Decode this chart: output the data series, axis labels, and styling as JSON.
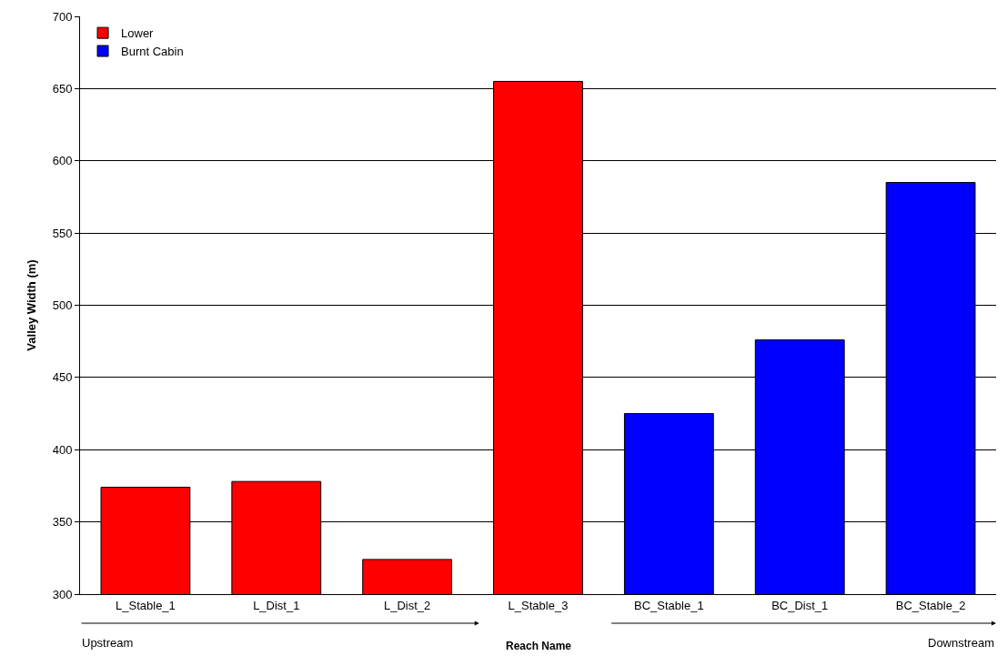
{
  "chart_data": {
    "type": "bar",
    "xlabel": "Reach Name",
    "ylabel": "Valley Width (m)",
    "categories": [
      "L_Stable_1",
      "L_Dist_1",
      "L_Dist_2",
      "L_Stable_3",
      "BC_Stable_1",
      "BC_Dist_1",
      "BC_Stable_2"
    ],
    "series": [
      {
        "name": "Lower",
        "color": "#ff0000",
        "values": [
          374,
          378,
          324,
          655,
          null,
          null,
          null
        ]
      },
      {
        "name": "Burnt Cabin",
        "color": "#0000ff",
        "values": [
          null,
          null,
          null,
          null,
          425,
          476,
          585
        ]
      }
    ],
    "ylim": [
      300,
      700
    ],
    "yticks": [
      300,
      350,
      400,
      450,
      500,
      550,
      600,
      650,
      700
    ],
    "grid": "y",
    "legend": "top left",
    "annotations": [
      "Upstream",
      "Downstream"
    ]
  }
}
